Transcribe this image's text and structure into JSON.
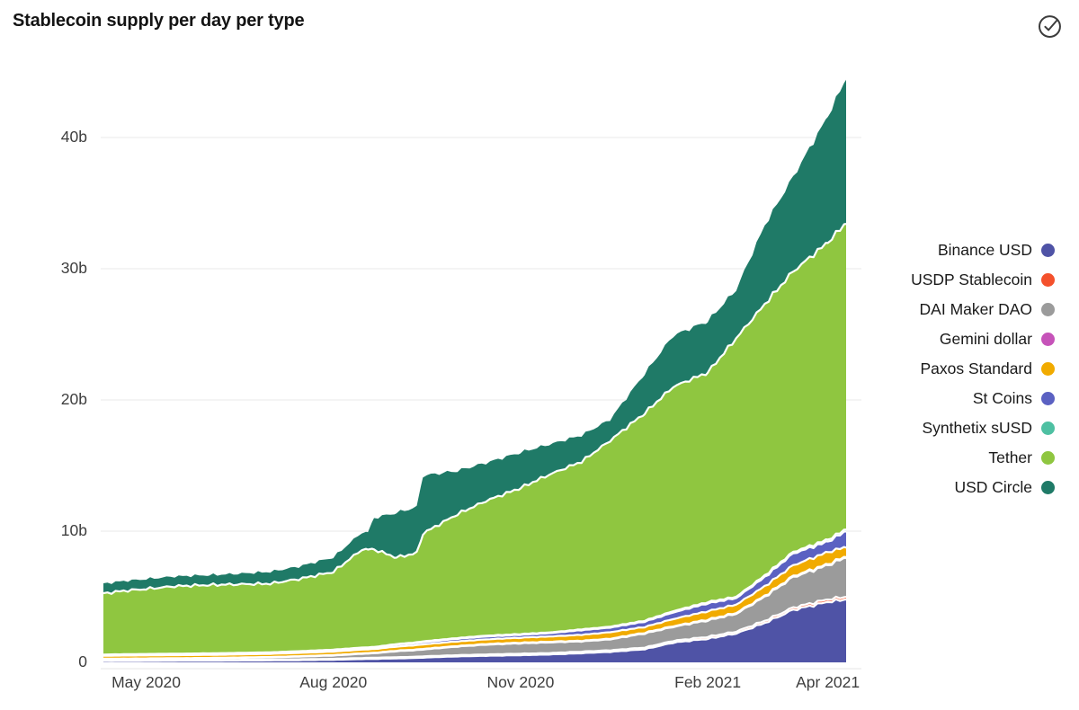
{
  "widget": {
    "title": "Stablecoin supply per day per type",
    "status_icon": "check-circle"
  },
  "chart_data": {
    "type": "area",
    "stacked": true,
    "title": "Stablecoin supply per day per type",
    "y_unit": "billions of USD (b)",
    "ylim": [
      0,
      45.5
    ],
    "grid": "horizontal",
    "legend_position": "right",
    "x_dates": [
      "2020-04-10",
      "2020-04-20",
      "2020-05-01",
      "2020-05-15",
      "2020-06-01",
      "2020-06-15",
      "2020-07-01",
      "2020-07-15",
      "2020-08-01",
      "2020-08-15",
      "2020-08-18",
      "2020-08-21",
      "2020-09-01",
      "2020-09-11",
      "2020-09-14",
      "2020-10-01",
      "2020-10-15",
      "2020-11-01",
      "2020-11-15",
      "2020-12-01",
      "2020-12-15",
      "2021-01-01",
      "2021-01-15",
      "2021-02-01",
      "2021-02-15",
      "2021-03-01",
      "2021-03-15",
      "2021-04-01",
      "2021-04-10"
    ],
    "x_days": [
      0,
      10,
      21,
      35,
      52,
      66,
      82,
      96,
      113,
      127,
      130,
      133,
      144,
      154,
      157,
      174,
      188,
      205,
      219,
      235,
      249,
      266,
      280,
      297,
      311,
      325,
      339,
      356,
      365
    ],
    "series": [
      {
        "name": "Binance USD",
        "color": "#4f53a6",
        "values": [
          0.1,
          0.1,
          0.11,
          0.12,
          0.13,
          0.14,
          0.15,
          0.17,
          0.2,
          0.25,
          0.26,
          0.27,
          0.3,
          0.34,
          0.36,
          0.45,
          0.5,
          0.55,
          0.6,
          0.7,
          0.8,
          1.0,
          1.5,
          1.8,
          2.2,
          3.0,
          4.0,
          4.6,
          4.8
        ]
      },
      {
        "name": "USDP Stablecoin",
        "color": "#f4512c",
        "values": [
          0.05,
          0.05,
          0.05,
          0.05,
          0.05,
          0.05,
          0.06,
          0.06,
          0.07,
          0.08,
          0.08,
          0.08,
          0.09,
          0.09,
          0.1,
          0.1,
          0.1,
          0.11,
          0.11,
          0.12,
          0.12,
          0.13,
          0.14,
          0.15,
          0.15,
          0.17,
          0.18,
          0.2,
          0.2
        ]
      },
      {
        "name": "DAI Maker DAO",
        "color": "#9b9b9b",
        "values": [
          0.1,
          0.11,
          0.11,
          0.12,
          0.13,
          0.15,
          0.17,
          0.21,
          0.25,
          0.32,
          0.33,
          0.34,
          0.46,
          0.5,
          0.52,
          0.65,
          0.75,
          0.79,
          0.81,
          0.78,
          0.83,
          1.07,
          1.06,
          1.25,
          1.35,
          1.83,
          2.32,
          2.6,
          3.0
        ]
      },
      {
        "name": "Gemini dollar",
        "color": "#c653b9",
        "values": [
          0.03,
          0.03,
          0.03,
          0.03,
          0.03,
          0.03,
          0.03,
          0.03,
          0.04,
          0.04,
          0.04,
          0.04,
          0.04,
          0.05,
          0.05,
          0.05,
          0.05,
          0.05,
          0.05,
          0.05,
          0.05,
          0.06,
          0.06,
          0.06,
          0.07,
          0.07,
          0.08,
          0.08,
          0.08
        ]
      },
      {
        "name": "Paxos Standard",
        "color": "#f1ab00",
        "values": [
          0.22,
          0.23,
          0.23,
          0.23,
          0.23,
          0.23,
          0.24,
          0.25,
          0.26,
          0.28,
          0.28,
          0.28,
          0.31,
          0.33,
          0.34,
          0.35,
          0.35,
          0.38,
          0.4,
          0.45,
          0.5,
          0.44,
          0.54,
          0.64,
          0.63,
          0.73,
          0.82,
          0.92,
          0.72
        ]
      },
      {
        "name": "St Coins",
        "color": "#5b61c2",
        "values": [
          0.07,
          0.07,
          0.07,
          0.08,
          0.08,
          0.08,
          0.08,
          0.09,
          0.1,
          0.11,
          0.11,
          0.11,
          0.15,
          0.16,
          0.17,
          0.2,
          0.22,
          0.22,
          0.25,
          0.35,
          0.35,
          0.4,
          0.5,
          0.6,
          0.5,
          0.7,
          0.9,
          0.8,
          1.2
        ]
      },
      {
        "name": "Synthetix sUSD",
        "color": "#4ec0a2",
        "values": [
          0.03,
          0.03,
          0.04,
          0.03,
          0.04,
          0.04,
          0.04,
          0.04,
          0.05,
          0.05,
          0.05,
          0.05,
          0.05,
          0.06,
          0.06,
          0.06,
          0.06,
          0.06,
          0.06,
          0.07,
          0.07,
          0.08,
          0.1,
          0.1,
          0.1,
          0.12,
          0.12,
          0.15,
          0.15
        ]
      },
      {
        "name": "Tether",
        "color": "#8fc640",
        "values": [
          4.65,
          4.83,
          4.96,
          5.14,
          5.21,
          5.23,
          5.23,
          5.5,
          5.93,
          7.47,
          7.45,
          7.43,
          6.6,
          6.8,
          8.22,
          9.44,
          10.27,
          11.14,
          12.02,
          12.78,
          14.18,
          15.82,
          17.1,
          17.5,
          19.7,
          20.68,
          21.38,
          22.65,
          23.35
        ]
      },
      {
        "name": "USD Circle",
        "color": "#1f7a67",
        "values": [
          0.75,
          0.75,
          0.75,
          0.75,
          0.75,
          0.8,
          0.9,
          0.95,
          1.1,
          1.3,
          1.3,
          2.4,
          3.4,
          3.5,
          4.4,
          3.3,
          2.9,
          2.7,
          2.3,
          2.0,
          1.6,
          3.0,
          3.9,
          3.9,
          3.7,
          6.0,
          7.2,
          9.6,
          11.0
        ]
      }
    ],
    "xticks": [
      {
        "day": 21,
        "label": "May 2020"
      },
      {
        "day": 113,
        "label": "Aug 2020"
      },
      {
        "day": 205,
        "label": "Nov 2020"
      },
      {
        "day": 297,
        "label": "Feb 2021"
      },
      {
        "day": 356,
        "label": "Apr 2021"
      }
    ],
    "yticks": [
      {
        "value": 0,
        "label": "0"
      },
      {
        "value": 10,
        "label": "10b"
      },
      {
        "value": 20,
        "label": "20b"
      },
      {
        "value": 30,
        "label": "30b"
      },
      {
        "value": 40,
        "label": "40b"
      }
    ]
  }
}
